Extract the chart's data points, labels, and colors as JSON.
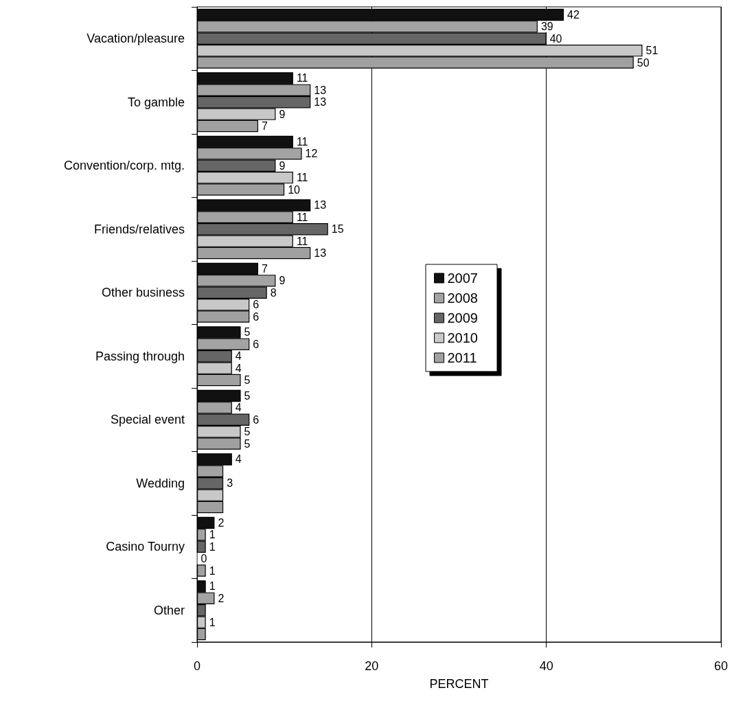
{
  "chart_data": {
    "type": "bar",
    "orientation": "horizontal",
    "xlabel": "PERCENT",
    "categories": [
      "Vacation/pleasure",
      "To gamble",
      "Convention/corp. mtg.",
      "Friends/relatives",
      "Other business",
      "Passing through",
      "Special event",
      "Wedding",
      "Casino Tourny",
      "Other"
    ],
    "series": [
      {
        "name": "2007",
        "color": "#111111",
        "values": [
          42,
          11,
          11,
          13,
          7,
          5,
          5,
          4,
          2,
          1
        ],
        "value_labels": [
          "42",
          "11",
          "11",
          "13",
          "7",
          "5",
          "5",
          "4",
          "2",
          "1"
        ]
      },
      {
        "name": "2008",
        "color": "#a3a3a3",
        "values": [
          39,
          13,
          12,
          11,
          9,
          6,
          4,
          3,
          1,
          2
        ],
        "value_labels": [
          "39",
          "13",
          "12",
          "11",
          "9",
          "6",
          "4",
          null,
          "1",
          "2"
        ]
      },
      {
        "name": "2009",
        "color": "#666666",
        "values": [
          40,
          13,
          9,
          15,
          8,
          4,
          6,
          3,
          1,
          1
        ],
        "value_labels": [
          "40",
          "13",
          "9",
          "15",
          "8",
          "4",
          "6",
          "3",
          "1",
          null
        ]
      },
      {
        "name": "2010",
        "color": "#c8c8c8",
        "values": [
          51,
          9,
          11,
          11,
          6,
          4,
          5,
          3,
          0,
          1
        ],
        "value_labels": [
          "51",
          "9",
          "11",
          "11",
          "6",
          "4",
          "5",
          null,
          "0",
          "1"
        ]
      },
      {
        "name": "2011",
        "color": "#a0a0a0",
        "values": [
          50,
          7,
          10,
          13,
          6,
          5,
          5,
          3,
          1,
          1
        ],
        "value_labels": [
          "50",
          "7",
          "10",
          "13",
          "6",
          "5",
          "5",
          null,
          "1",
          null
        ]
      }
    ],
    "xlim": [
      0,
      60
    ],
    "xticks": [
      0,
      20,
      40,
      60
    ],
    "grid": "x",
    "legend": "center"
  }
}
